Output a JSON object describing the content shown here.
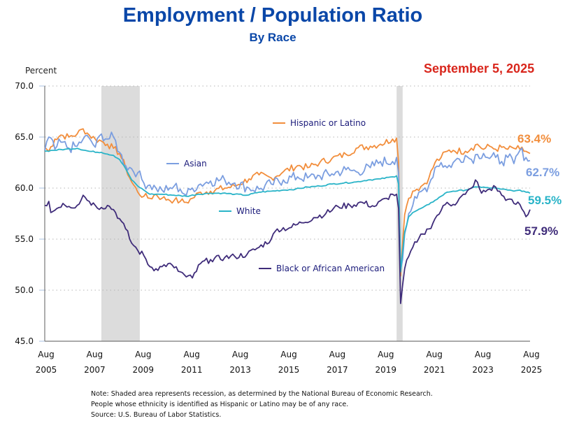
{
  "header": {
    "title": "Employment / Population Ratio",
    "subtitle": "By Race",
    "date": "September 5, 2025"
  },
  "notes": [
    "Note: Shaded area represents recession, as determined by the National Bureau of Economic Research.",
    "People whose ethnicity is identified as Hispanic or Latino may be of any race.",
    "Source: U.S. Bureau of Labor Statistics."
  ],
  "chart_data": {
    "type": "line",
    "title": "Employment / Population Ratio",
    "subtitle": "By Race",
    "xlabel": "",
    "ylabel": "Percent",
    "ylim": [
      45.0,
      70.0
    ],
    "yticks": [
      "45.0",
      "50.0",
      "55.0",
      "60.0",
      "65.0",
      "70.0"
    ],
    "x_start": "2005-08",
    "x_end": "2025-08",
    "frequency": "monthly",
    "xticks": [
      {
        "month": "Aug",
        "year": "2005"
      },
      {
        "month": "Aug",
        "year": "2007"
      },
      {
        "month": "Aug",
        "year": "2009"
      },
      {
        "month": "Aug",
        "year": "2011"
      },
      {
        "month": "Aug",
        "year": "2013"
      },
      {
        "month": "Aug",
        "year": "2015"
      },
      {
        "month": "Aug",
        "year": "2017"
      },
      {
        "month": "Aug",
        "year": "2019"
      },
      {
        "month": "Aug",
        "year": "2021"
      },
      {
        "month": "Aug",
        "year": "2023"
      },
      {
        "month": "Aug",
        "year": "2025"
      }
    ],
    "grid": "horizontal-dotted",
    "recessions": [
      {
        "start": "2007-12",
        "end": "2009-06"
      },
      {
        "start": "2020-02",
        "end": "2020-04"
      }
    ],
    "series": [
      {
        "name": "Hispanic or Latino",
        "color": "#f28e3c",
        "end_label": "63.4%",
        "anchors": [
          [
            "2005-08",
            64.0
          ],
          [
            "2005-10",
            63.6
          ],
          [
            "2006-01",
            64.8
          ],
          [
            "2006-04",
            65.2
          ],
          [
            "2006-08",
            65.0
          ],
          [
            "2006-12",
            65.3
          ],
          [
            "2007-03",
            65.8
          ],
          [
            "2007-06",
            65.2
          ],
          [
            "2007-09",
            64.8
          ],
          [
            "2007-12",
            64.6
          ],
          [
            "2008-03",
            64.3
          ],
          [
            "2008-06",
            63.9
          ],
          [
            "2008-09",
            63.4
          ],
          [
            "2008-12",
            62.0
          ],
          [
            "2009-03",
            60.6
          ],
          [
            "2009-06",
            59.6
          ],
          [
            "2009-09",
            59.2
          ],
          [
            "2009-12",
            59.0
          ],
          [
            "2010-03",
            59.4
          ],
          [
            "2010-06",
            59.0
          ],
          [
            "2010-09",
            58.9
          ],
          [
            "2010-12",
            58.8
          ],
          [
            "2011-03",
            58.7
          ],
          [
            "2011-06",
            58.6
          ],
          [
            "2011-09",
            59.0
          ],
          [
            "2012-01",
            59.6
          ],
          [
            "2012-06",
            59.7
          ],
          [
            "2013-01",
            60.0
          ],
          [
            "2013-06",
            60.2
          ],
          [
            "2014-01",
            60.9
          ],
          [
            "2014-06",
            61.3
          ],
          [
            "2014-12",
            61.0
          ],
          [
            "2015-06",
            61.6
          ],
          [
            "2016-01",
            62.2
          ],
          [
            "2016-06",
            62.0
          ],
          [
            "2016-12",
            62.5
          ],
          [
            "2017-06",
            62.9
          ],
          [
            "2018-01",
            63.3
          ],
          [
            "2018-06",
            63.9
          ],
          [
            "2019-01",
            64.1
          ],
          [
            "2019-06",
            64.3
          ],
          [
            "2019-12",
            64.8
          ],
          [
            "2020-02",
            64.9
          ],
          [
            "2020-03",
            62.5
          ],
          [
            "2020-04",
            51.4
          ],
          [
            "2020-05",
            54.7
          ],
          [
            "2020-06",
            57.4
          ],
          [
            "2020-08",
            59.0
          ],
          [
            "2020-10",
            59.7
          ],
          [
            "2020-12",
            59.9
          ],
          [
            "2021-03",
            60.3
          ],
          [
            "2021-06",
            61.0
          ],
          [
            "2021-09",
            62.5
          ],
          [
            "2021-12",
            63.0
          ],
          [
            "2022-03",
            63.6
          ],
          [
            "2022-06",
            63.7
          ],
          [
            "2022-12",
            63.6
          ],
          [
            "2023-03",
            63.9
          ],
          [
            "2023-06",
            64.3
          ],
          [
            "2023-09",
            63.8
          ],
          [
            "2023-12",
            64.1
          ],
          [
            "2024-03",
            63.8
          ],
          [
            "2024-06",
            64.0
          ],
          [
            "2024-09",
            63.8
          ],
          [
            "2024-12",
            63.9
          ],
          [
            "2025-03",
            63.8
          ],
          [
            "2025-06",
            63.6
          ],
          [
            "2025-08",
            63.4
          ]
        ]
      },
      {
        "name": "Asian",
        "color": "#7b9ee0",
        "end_label": "62.7%",
        "anchors": [
          [
            "2005-08",
            63.7
          ],
          [
            "2005-10",
            65.0
          ],
          [
            "2006-01",
            63.8
          ],
          [
            "2006-04",
            64.5
          ],
          [
            "2006-08",
            63.9
          ],
          [
            "2006-12",
            64.1
          ],
          [
            "2007-03",
            64.8
          ],
          [
            "2007-06",
            64.9
          ],
          [
            "2007-09",
            64.0
          ],
          [
            "2007-12",
            65.3
          ],
          [
            "2008-03",
            64.8
          ],
          [
            "2008-06",
            65.0
          ],
          [
            "2008-09",
            63.5
          ],
          [
            "2008-12",
            62.2
          ],
          [
            "2009-03",
            61.9
          ],
          [
            "2009-06",
            61.5
          ],
          [
            "2009-09",
            60.5
          ],
          [
            "2009-12",
            60.3
          ],
          [
            "2010-03",
            60.0
          ],
          [
            "2010-06",
            59.8
          ],
          [
            "2010-09",
            59.8
          ],
          [
            "2010-12",
            60.2
          ],
          [
            "2011-03",
            59.9
          ],
          [
            "2011-06",
            59.3
          ],
          [
            "2011-09",
            60.0
          ],
          [
            "2012-01",
            60.4
          ],
          [
            "2012-06",
            60.7
          ],
          [
            "2013-01",
            60.8
          ],
          [
            "2013-06",
            60.5
          ],
          [
            "2014-01",
            60.0
          ],
          [
            "2014-06",
            59.9
          ],
          [
            "2014-12",
            60.4
          ],
          [
            "2015-06",
            60.8
          ],
          [
            "2016-01",
            61.1
          ],
          [
            "2016-06",
            61.0
          ],
          [
            "2016-12",
            61.2
          ],
          [
            "2017-06",
            61.4
          ],
          [
            "2018-01",
            61.8
          ],
          [
            "2018-06",
            61.6
          ],
          [
            "2019-01",
            62.0
          ],
          [
            "2019-06",
            62.6
          ],
          [
            "2019-12",
            62.6
          ],
          [
            "2020-02",
            63.0
          ],
          [
            "2020-03",
            61.5
          ],
          [
            "2020-04",
            52.0
          ],
          [
            "2020-05",
            53.0
          ],
          [
            "2020-06",
            55.5
          ],
          [
            "2020-08",
            57.5
          ],
          [
            "2020-10",
            58.3
          ],
          [
            "2020-12",
            59.0
          ],
          [
            "2021-03",
            59.8
          ],
          [
            "2021-06",
            60.3
          ],
          [
            "2021-09",
            62.0
          ],
          [
            "2021-12",
            62.5
          ],
          [
            "2022-03",
            62.0
          ],
          [
            "2022-06",
            62.5
          ],
          [
            "2022-12",
            63.2
          ],
          [
            "2023-03",
            62.8
          ],
          [
            "2023-06",
            63.3
          ],
          [
            "2023-09",
            63.4
          ],
          [
            "2023-12",
            62.9
          ],
          [
            "2024-03",
            63.0
          ],
          [
            "2024-06",
            62.6
          ],
          [
            "2024-09",
            63.0
          ],
          [
            "2024-12",
            62.4
          ],
          [
            "2025-03",
            63.7
          ],
          [
            "2025-06",
            63.0
          ],
          [
            "2025-08",
            62.7
          ]
        ]
      },
      {
        "name": "White",
        "color": "#2ab4c8",
        "end_label": "59.5%",
        "anchors": [
          [
            "2005-08",
            63.6
          ],
          [
            "2005-12",
            63.7
          ],
          [
            "2006-06",
            63.8
          ],
          [
            "2006-12",
            63.9
          ],
          [
            "2007-06",
            63.6
          ],
          [
            "2007-12",
            63.5
          ],
          [
            "2008-06",
            63.2
          ],
          [
            "2008-09",
            62.8
          ],
          [
            "2008-12",
            61.9
          ],
          [
            "2009-03",
            60.8
          ],
          [
            "2009-06",
            60.2
          ],
          [
            "2009-09",
            59.8
          ],
          [
            "2009-12",
            59.4
          ],
          [
            "2010-03",
            59.4
          ],
          [
            "2010-06",
            59.4
          ],
          [
            "2010-12",
            59.3
          ],
          [
            "2011-06",
            59.2
          ],
          [
            "2011-12",
            59.4
          ],
          [
            "2012-06",
            59.5
          ],
          [
            "2012-12",
            59.5
          ],
          [
            "2013-06",
            59.4
          ],
          [
            "2013-12",
            59.3
          ],
          [
            "2014-06",
            59.6
          ],
          [
            "2014-12",
            59.7
          ],
          [
            "2015-06",
            59.8
          ],
          [
            "2015-12",
            59.9
          ],
          [
            "2016-06",
            60.1
          ],
          [
            "2016-12",
            60.2
          ],
          [
            "2017-06",
            60.4
          ],
          [
            "2017-12",
            60.5
          ],
          [
            "2018-06",
            60.6
          ],
          [
            "2018-12",
            60.8
          ],
          [
            "2019-06",
            60.9
          ],
          [
            "2019-12",
            61.1
          ],
          [
            "2020-02",
            61.2
          ],
          [
            "2020-03",
            60.4
          ],
          [
            "2020-04",
            51.8
          ],
          [
            "2020-05",
            53.8
          ],
          [
            "2020-06",
            55.7
          ],
          [
            "2020-08",
            57.2
          ],
          [
            "2020-10",
            57.6
          ],
          [
            "2020-12",
            57.8
          ],
          [
            "2021-03",
            58.1
          ],
          [
            "2021-06",
            58.4
          ],
          [
            "2021-09",
            58.8
          ],
          [
            "2021-12",
            59.2
          ],
          [
            "2022-03",
            59.6
          ],
          [
            "2022-06",
            59.7
          ],
          [
            "2022-12",
            59.8
          ],
          [
            "2023-03",
            60.0
          ],
          [
            "2023-06",
            60.1
          ],
          [
            "2023-09",
            60.1
          ],
          [
            "2023-12",
            60.0
          ],
          [
            "2024-03",
            60.0
          ],
          [
            "2024-06",
            59.9
          ],
          [
            "2024-09",
            59.8
          ],
          [
            "2024-12",
            59.7
          ],
          [
            "2025-03",
            59.8
          ],
          [
            "2025-06",
            59.6
          ],
          [
            "2025-08",
            59.5
          ]
        ]
      },
      {
        "name": "Black or African American",
        "color": "#3f2c7a",
        "end_label": "57.9%",
        "anchors": [
          [
            "2005-08",
            58.3
          ],
          [
            "2005-10",
            58.7
          ],
          [
            "2005-11",
            57.6
          ],
          [
            "2006-02",
            58.0
          ],
          [
            "2006-05",
            58.5
          ],
          [
            "2006-08",
            58.2
          ],
          [
            "2006-12",
            58.3
          ],
          [
            "2007-03",
            59.3
          ],
          [
            "2007-06",
            58.7
          ],
          [
            "2007-09",
            58.3
          ],
          [
            "2007-12",
            58.1
          ],
          [
            "2008-03",
            58.3
          ],
          [
            "2008-06",
            57.9
          ],
          [
            "2008-09",
            57.0
          ],
          [
            "2008-12",
            56.0
          ],
          [
            "2009-03",
            54.6
          ],
          [
            "2009-06",
            53.9
          ],
          [
            "2009-09",
            53.4
          ],
          [
            "2009-12",
            52.3
          ],
          [
            "2010-03",
            52.1
          ],
          [
            "2010-06",
            52.3
          ],
          [
            "2010-09",
            52.6
          ],
          [
            "2010-12",
            52.2
          ],
          [
            "2011-03",
            51.8
          ],
          [
            "2011-06",
            51.3
          ],
          [
            "2011-09",
            51.2
          ],
          [
            "2012-01",
            52.6
          ],
          [
            "2012-06",
            53.0
          ],
          [
            "2013-01",
            53.2
          ],
          [
            "2013-06",
            53.3
          ],
          [
            "2013-12",
            53.5
          ],
          [
            "2014-06",
            54.2
          ],
          [
            "2014-12",
            55.0
          ],
          [
            "2015-03",
            56.0
          ],
          [
            "2015-09",
            56.1
          ],
          [
            "2016-03",
            56.6
          ],
          [
            "2016-09",
            57.1
          ],
          [
            "2017-03",
            57.5
          ],
          [
            "2017-09",
            58.2
          ],
          [
            "2018-03",
            58.3
          ],
          [
            "2018-09",
            58.6
          ],
          [
            "2019-03",
            58.2
          ],
          [
            "2019-09",
            59.0
          ],
          [
            "2019-12",
            59.4
          ],
          [
            "2020-02",
            59.4
          ],
          [
            "2020-03",
            58.0
          ],
          [
            "2020-04",
            48.7
          ],
          [
            "2020-05",
            50.5
          ],
          [
            "2020-06",
            52.1
          ],
          [
            "2020-08",
            53.3
          ],
          [
            "2020-10",
            54.2
          ],
          [
            "2020-12",
            54.7
          ],
          [
            "2021-03",
            55.5
          ],
          [
            "2021-06",
            56.0
          ],
          [
            "2021-09",
            57.0
          ],
          [
            "2021-12",
            57.8
          ],
          [
            "2022-03",
            58.6
          ],
          [
            "2022-06",
            58.4
          ],
          [
            "2022-12",
            59.4
          ],
          [
            "2023-03",
            60.0
          ],
          [
            "2023-05",
            60.8
          ],
          [
            "2023-08",
            59.5
          ],
          [
            "2023-12",
            59.9
          ],
          [
            "2024-03",
            60.1
          ],
          [
            "2024-06",
            59.3
          ],
          [
            "2024-09",
            58.9
          ],
          [
            "2024-12",
            58.5
          ],
          [
            "2025-03",
            58.4
          ],
          [
            "2025-06",
            57.2
          ],
          [
            "2025-08",
            57.9
          ]
        ]
      }
    ],
    "legend": [
      {
        "label": "Hispanic or Latino",
        "position": "upper-center"
      },
      {
        "label": "Asian",
        "position": "upper-left"
      },
      {
        "label": "White",
        "position": "center"
      },
      {
        "label": "Black or African American",
        "position": "lower-center"
      }
    ]
  }
}
